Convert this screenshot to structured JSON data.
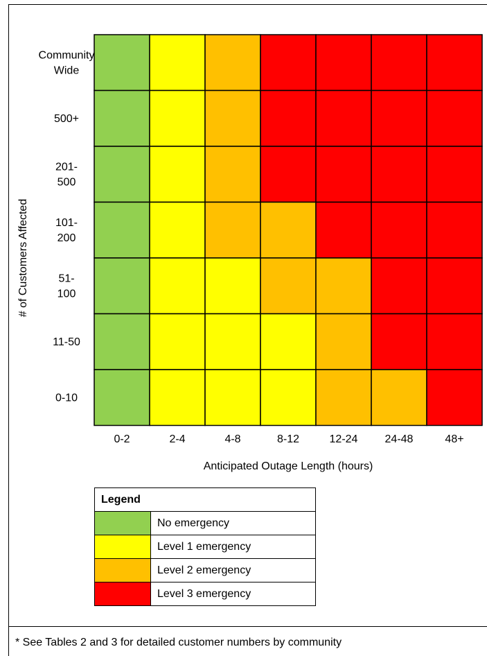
{
  "chart_data": {
    "type": "heatmap",
    "xlabel": "Anticipated Outage Length (hours)",
    "ylabel": "# of Customers Affected",
    "x_categories": [
      "0-2",
      "2-4",
      "4-8",
      "8-12",
      "12-24",
      "24-48",
      "48+"
    ],
    "y_categories": [
      [
        "Community",
        "Wide"
      ],
      [
        "500+"
      ],
      [
        "201-",
        "500"
      ],
      [
        "101-",
        "200"
      ],
      [
        "51-",
        "100"
      ],
      [
        "11-50"
      ],
      [
        "0-10"
      ]
    ],
    "levels": [
      [
        0,
        1,
        2,
        3,
        3,
        3,
        3
      ],
      [
        0,
        1,
        2,
        3,
        3,
        3,
        3
      ],
      [
        0,
        1,
        2,
        3,
        3,
        3,
        3
      ],
      [
        0,
        1,
        2,
        2,
        3,
        3,
        3
      ],
      [
        0,
        1,
        1,
        2,
        2,
        3,
        3
      ],
      [
        0,
        1,
        1,
        1,
        2,
        3,
        3
      ],
      [
        0,
        1,
        1,
        1,
        2,
        2,
        3
      ]
    ],
    "level_colors": [
      "#92d050",
      "#ffff00",
      "#ffc000",
      "#ff0000"
    ]
  },
  "legend": {
    "title": "Legend",
    "items": [
      {
        "label": "No emergency",
        "color": "#92d050"
      },
      {
        "label": "Level 1 emergency",
        "color": "#ffff00"
      },
      {
        "label": "Level 2 emergency",
        "color": "#ffc000"
      },
      {
        "label": "Level 3 emergency",
        "color": "#ff0000"
      }
    ]
  },
  "footnote": "* See Tables 2 and 3 for detailed customer numbers by community"
}
